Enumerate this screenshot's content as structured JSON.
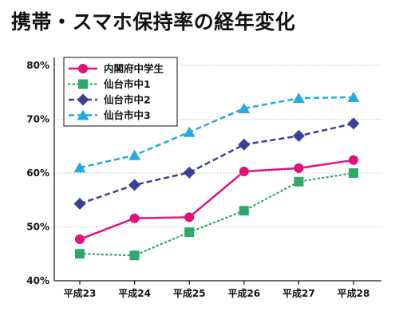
{
  "colors": {
    "background": "#ffffff",
    "grid": "#bdbdbd",
    "axis": "#111111",
    "text": "#111111"
  },
  "chart_data": {
    "type": "line",
    "title": "携帯・スマホ保持率の経年変化",
    "xlabel": "",
    "ylabel": "",
    "categories": [
      "平成23",
      "平成24",
      "平成25",
      "平成26",
      "平成27",
      "平成28"
    ],
    "ylim": [
      40,
      80
    ],
    "yticks": [
      40,
      50,
      60,
      70,
      80
    ],
    "ytick_labels": [
      "40%",
      "50%",
      "60%",
      "70%",
      "80%"
    ],
    "grid": "horizontal dotted",
    "legend_position": "top-left",
    "series": [
      {
        "name": "内閣府中学生",
        "values": [
          47.7,
          51.6,
          51.8,
          60.3,
          60.9,
          62.4
        ],
        "color": "#e0127a",
        "marker": "circle",
        "line": "solid"
      },
      {
        "name": "仙台市中1",
        "values": [
          45.0,
          44.7,
          49.0,
          53.0,
          58.4,
          60.0
        ],
        "color": "#2ea86a",
        "marker": "square",
        "line": "dotted"
      },
      {
        "name": "仙台市中2",
        "values": [
          54.3,
          57.8,
          60.1,
          65.3,
          66.9,
          69.2
        ],
        "color": "#3b3f95",
        "marker": "diamond",
        "line": "dashed"
      },
      {
        "name": "仙台市中3",
        "values": [
          61.0,
          63.3,
          67.6,
          72.0,
          73.9,
          74.1
        ],
        "color": "#22a9e1",
        "marker": "triangle",
        "line": "dashed"
      }
    ]
  }
}
